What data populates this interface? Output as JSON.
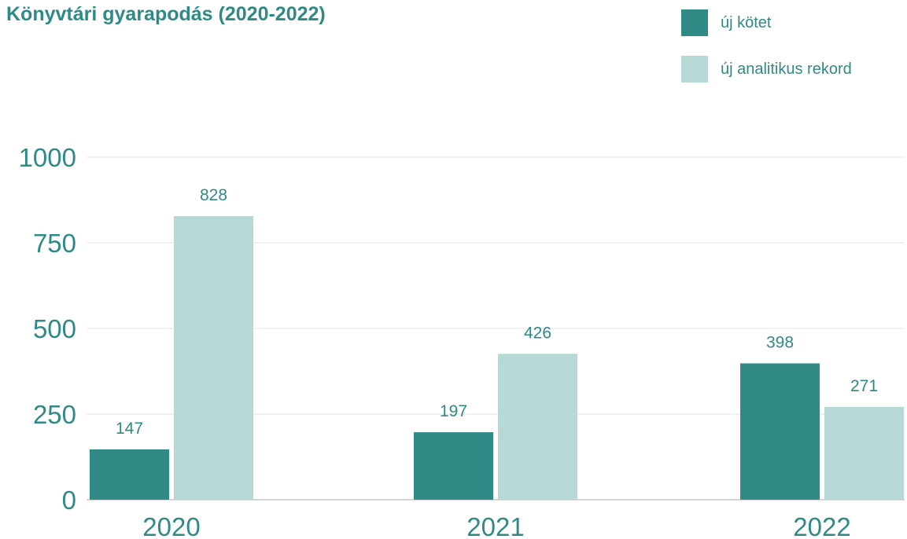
{
  "chart_data": {
    "type": "bar",
    "title": "Könyvtári gyarapodás (2020-2022)",
    "xlabel": "",
    "ylabel": "",
    "categories": [
      "2020",
      "2021",
      "2022"
    ],
    "series": [
      {
        "name": "új kötet",
        "values": [
          147,
          197,
          398
        ],
        "color": "#318a86"
      },
      {
        "name": "új analitikus rekord",
        "values": [
          828,
          426,
          271
        ],
        "color": "#b6d9d6"
      }
    ],
    "yticks": [
      0,
      250,
      500,
      750,
      1000
    ],
    "ylim": [
      0,
      1000
    ],
    "grid": true,
    "legend_position": "top-right"
  },
  "colors": {
    "text": "#2f8a86",
    "grid": "#e3e3e3",
    "axis": "#d4d4d4"
  }
}
